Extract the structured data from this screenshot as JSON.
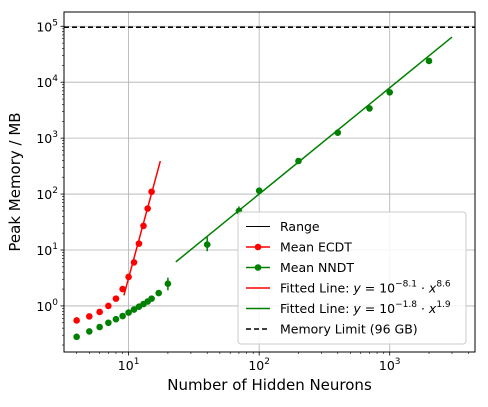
{
  "chart_data": {
    "type": "line",
    "xlabel": "Number of Hidden Neurons",
    "ylabel": "Peak Memory / MB",
    "xscale": "log",
    "yscale": "log",
    "xlim": [
      3.2,
      4500
    ],
    "ylim": [
      0.15,
      180000
    ],
    "grid": true,
    "legend_position": "lower-right",
    "x_ticks": [
      {
        "value": 10,
        "exp": "1"
      },
      {
        "value": 100,
        "exp": "2"
      },
      {
        "value": 1000,
        "exp": "3"
      }
    ],
    "y_ticks": [
      {
        "value": 1,
        "exp": "0"
      },
      {
        "value": 10,
        "exp": "1"
      },
      {
        "value": 100,
        "exp": "2"
      },
      {
        "value": 1000,
        "exp": "3"
      },
      {
        "value": 10000,
        "exp": "4"
      },
      {
        "value": 100000,
        "exp": "5"
      }
    ],
    "tick_base": "10",
    "series": [
      {
        "name": "Mean ECDT",
        "color": "#ff0000",
        "x": [
          4,
          5,
          6,
          7,
          8,
          9,
          10,
          11,
          12,
          13,
          14,
          15
        ],
        "y": [
          0.55,
          0.65,
          0.78,
          1.0,
          1.35,
          2.0,
          3.3,
          6.0,
          13.0,
          27.0,
          55.0,
          110.0
        ],
        "err_low": [
          0.55,
          0.65,
          0.78,
          1.0,
          1.35,
          2.0,
          3.3,
          6.0,
          13.0,
          27.0,
          55.0,
          110.0
        ],
        "err_high": [
          0.55,
          0.65,
          0.78,
          1.0,
          1.35,
          2.0,
          3.3,
          6.0,
          13.0,
          27.0,
          55.0,
          110.0
        ]
      },
      {
        "name": "Mean NNDT",
        "color": "#008000",
        "x": [
          4,
          5,
          6,
          7,
          8,
          9,
          10,
          11,
          12,
          13,
          14,
          15,
          17,
          20,
          40,
          70,
          100,
          200,
          400,
          700,
          1000,
          2000
        ],
        "y": [
          0.28,
          0.35,
          0.42,
          0.5,
          0.58,
          0.66,
          0.76,
          0.86,
          0.97,
          1.08,
          1.2,
          1.35,
          1.7,
          2.5,
          12.5,
          50.0,
          115.0,
          390.0,
          1250.0,
          3400.0,
          6600.0,
          24000.0
        ],
        "err_low": [
          0.28,
          0.35,
          0.42,
          0.5,
          0.58,
          0.66,
          0.76,
          0.86,
          0.97,
          1.08,
          1.2,
          1.35,
          1.7,
          1.9,
          9.5,
          42.0,
          112.0,
          390.0,
          1250.0,
          3400.0,
          6600.0,
          24000.0
        ],
        "err_high": [
          0.28,
          0.35,
          0.42,
          0.5,
          0.58,
          0.66,
          0.76,
          0.86,
          0.97,
          1.08,
          1.2,
          1.35,
          1.7,
          3.2,
          17.0,
          60.0,
          125.0,
          390.0,
          1250.0,
          3400.0,
          6600.0,
          24000.0
        ]
      }
    ],
    "fits": [
      {
        "label": "Fitted Line: $y = 10^{-8.1} \\cdot x^{8.6}$",
        "label_prefix": "Fitted Line: ",
        "coef_exp": "−8.1",
        "power": "8.6",
        "color": "#ff0000",
        "log10_a": -8.1,
        "b": 8.6,
        "x_range": [
          9.2,
          17.5
        ]
      },
      {
        "label": "Fitted Line: $y = 10^{-1.8} \\cdot x^{1.9}$",
        "label_prefix": "Fitted Line: ",
        "coef_exp": "−1.8",
        "power": "1.9",
        "color": "#008000",
        "log10_a": -1.8,
        "b": 1.9,
        "x_range": [
          23,
          3000
        ]
      }
    ],
    "memory_limit": {
      "value": 96000,
      "label": "Memory Limit (96 GB)",
      "color": "#000000",
      "style": "dashed"
    },
    "legend": [
      {
        "label": "Range",
        "kind": "line",
        "color": "#000000"
      },
      {
        "label": "Mean ECDT",
        "kind": "line-marker",
        "color": "#ff0000"
      },
      {
        "label": "Mean NNDT",
        "kind": "line-marker",
        "color": "#008000"
      },
      {
        "label": "Fitted Line: ",
        "kind": "fit",
        "color": "#ff0000",
        "coef_exp": "−8.1",
        "power": "8.6"
      },
      {
        "label": "Fitted Line: ",
        "kind": "fit",
        "color": "#008000",
        "coef_exp": "−1.8",
        "power": "1.9"
      },
      {
        "label": "Memory Limit (96 GB)",
        "kind": "dashed",
        "color": "#000000"
      }
    ]
  }
}
